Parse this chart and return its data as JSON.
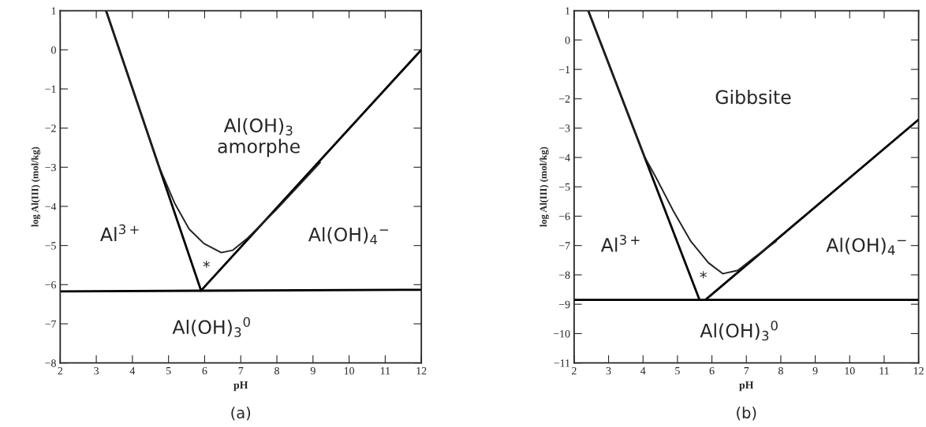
{
  "chart_data": [
    {
      "type": "line",
      "title": "(a)",
      "xlabel": "pH",
      "ylabel": "log Al(III) (mol/kg)",
      "xlim": [
        2,
        12
      ],
      "ylim": [
        -8,
        1
      ],
      "xticks": [
        2,
        3,
        4,
        5,
        6,
        7,
        8,
        9,
        10,
        11,
        12
      ],
      "yticks": [
        -8,
        -7,
        -6,
        -5,
        -4,
        -3,
        -2,
        -1,
        0,
        1
      ],
      "series": [
        {
          "color": "#000000",
          "x": [
            3.27,
            5.9
          ],
          "values": [
            1,
            -6.15
          ]
        },
        {
          "color": "#000000",
          "x": [
            5.9,
            12
          ],
          "values": [
            -6.15,
            0
          ]
        },
        {
          "color": "#000000",
          "x": [
            2,
            12
          ],
          "values": [
            -6.17,
            -6.13
          ]
        },
        {
          "color": "#222222",
          "x": [
            3.27,
            4.5,
            4.69,
            5.17,
            5.57,
            5.98,
            6.46,
            6.78,
            7.19,
            8.0,
            9.2
          ],
          "values": [
            1,
            -2.35,
            -2.88,
            -3.92,
            -4.58,
            -4.95,
            -5.18,
            -5.12,
            -4.81,
            -4.07,
            -2.88
          ]
        }
      ],
      "annotations": [
        "Al(OH)$_{3}$\namorphe",
        "Al$^{3+}$",
        "Al(OH)$_{4}$$^{−}$",
        "*",
        "Al(OH)$_{3}$$^{0}$"
      ]
    },
    {
      "type": "line",
      "title": "(b)",
      "xlabel": "pH",
      "ylabel": "log Al(III) (mol/kg)",
      "xlim": [
        2,
        12
      ],
      "ylim": [
        -11,
        1
      ],
      "xticks": [
        2,
        3,
        4,
        5,
        6,
        7,
        8,
        9,
        10,
        11,
        12
      ],
      "yticks": [
        -11,
        -10,
        -9,
        -8,
        -7,
        -6,
        -5,
        -4,
        -3,
        -2,
        -1,
        0,
        1
      ],
      "series": [
        {
          "color": "#000000",
          "x": [
            2.41,
            5.64
          ],
          "values": [
            1,
            -8.85
          ]
        },
        {
          "color": "#000000",
          "x": [
            5.81,
            12
          ],
          "values": [
            -8.85,
            -2.71
          ]
        },
        {
          "color": "#000000",
          "x": [
            2,
            12
          ],
          "values": [
            -8.85,
            -8.85
          ]
        },
        {
          "color": "#222222",
          "x": [
            2.41,
            4.03,
            4.37,
            4.88,
            5.39,
            5.9,
            6.32,
            6.75,
            7.26,
            7.86
          ],
          "values": [
            1,
            -3.94,
            -4.67,
            -5.82,
            -6.86,
            -7.59,
            -7.96,
            -7.85,
            -7.38,
            -6.86
          ]
        }
      ],
      "annotations": [
        "Gibbsite",
        "Al$^{3+}$",
        "Al(OH)$_{4}$$^{−}$",
        "*",
        "Al(OH)$_{3}$$^{0}$"
      ]
    }
  ]
}
